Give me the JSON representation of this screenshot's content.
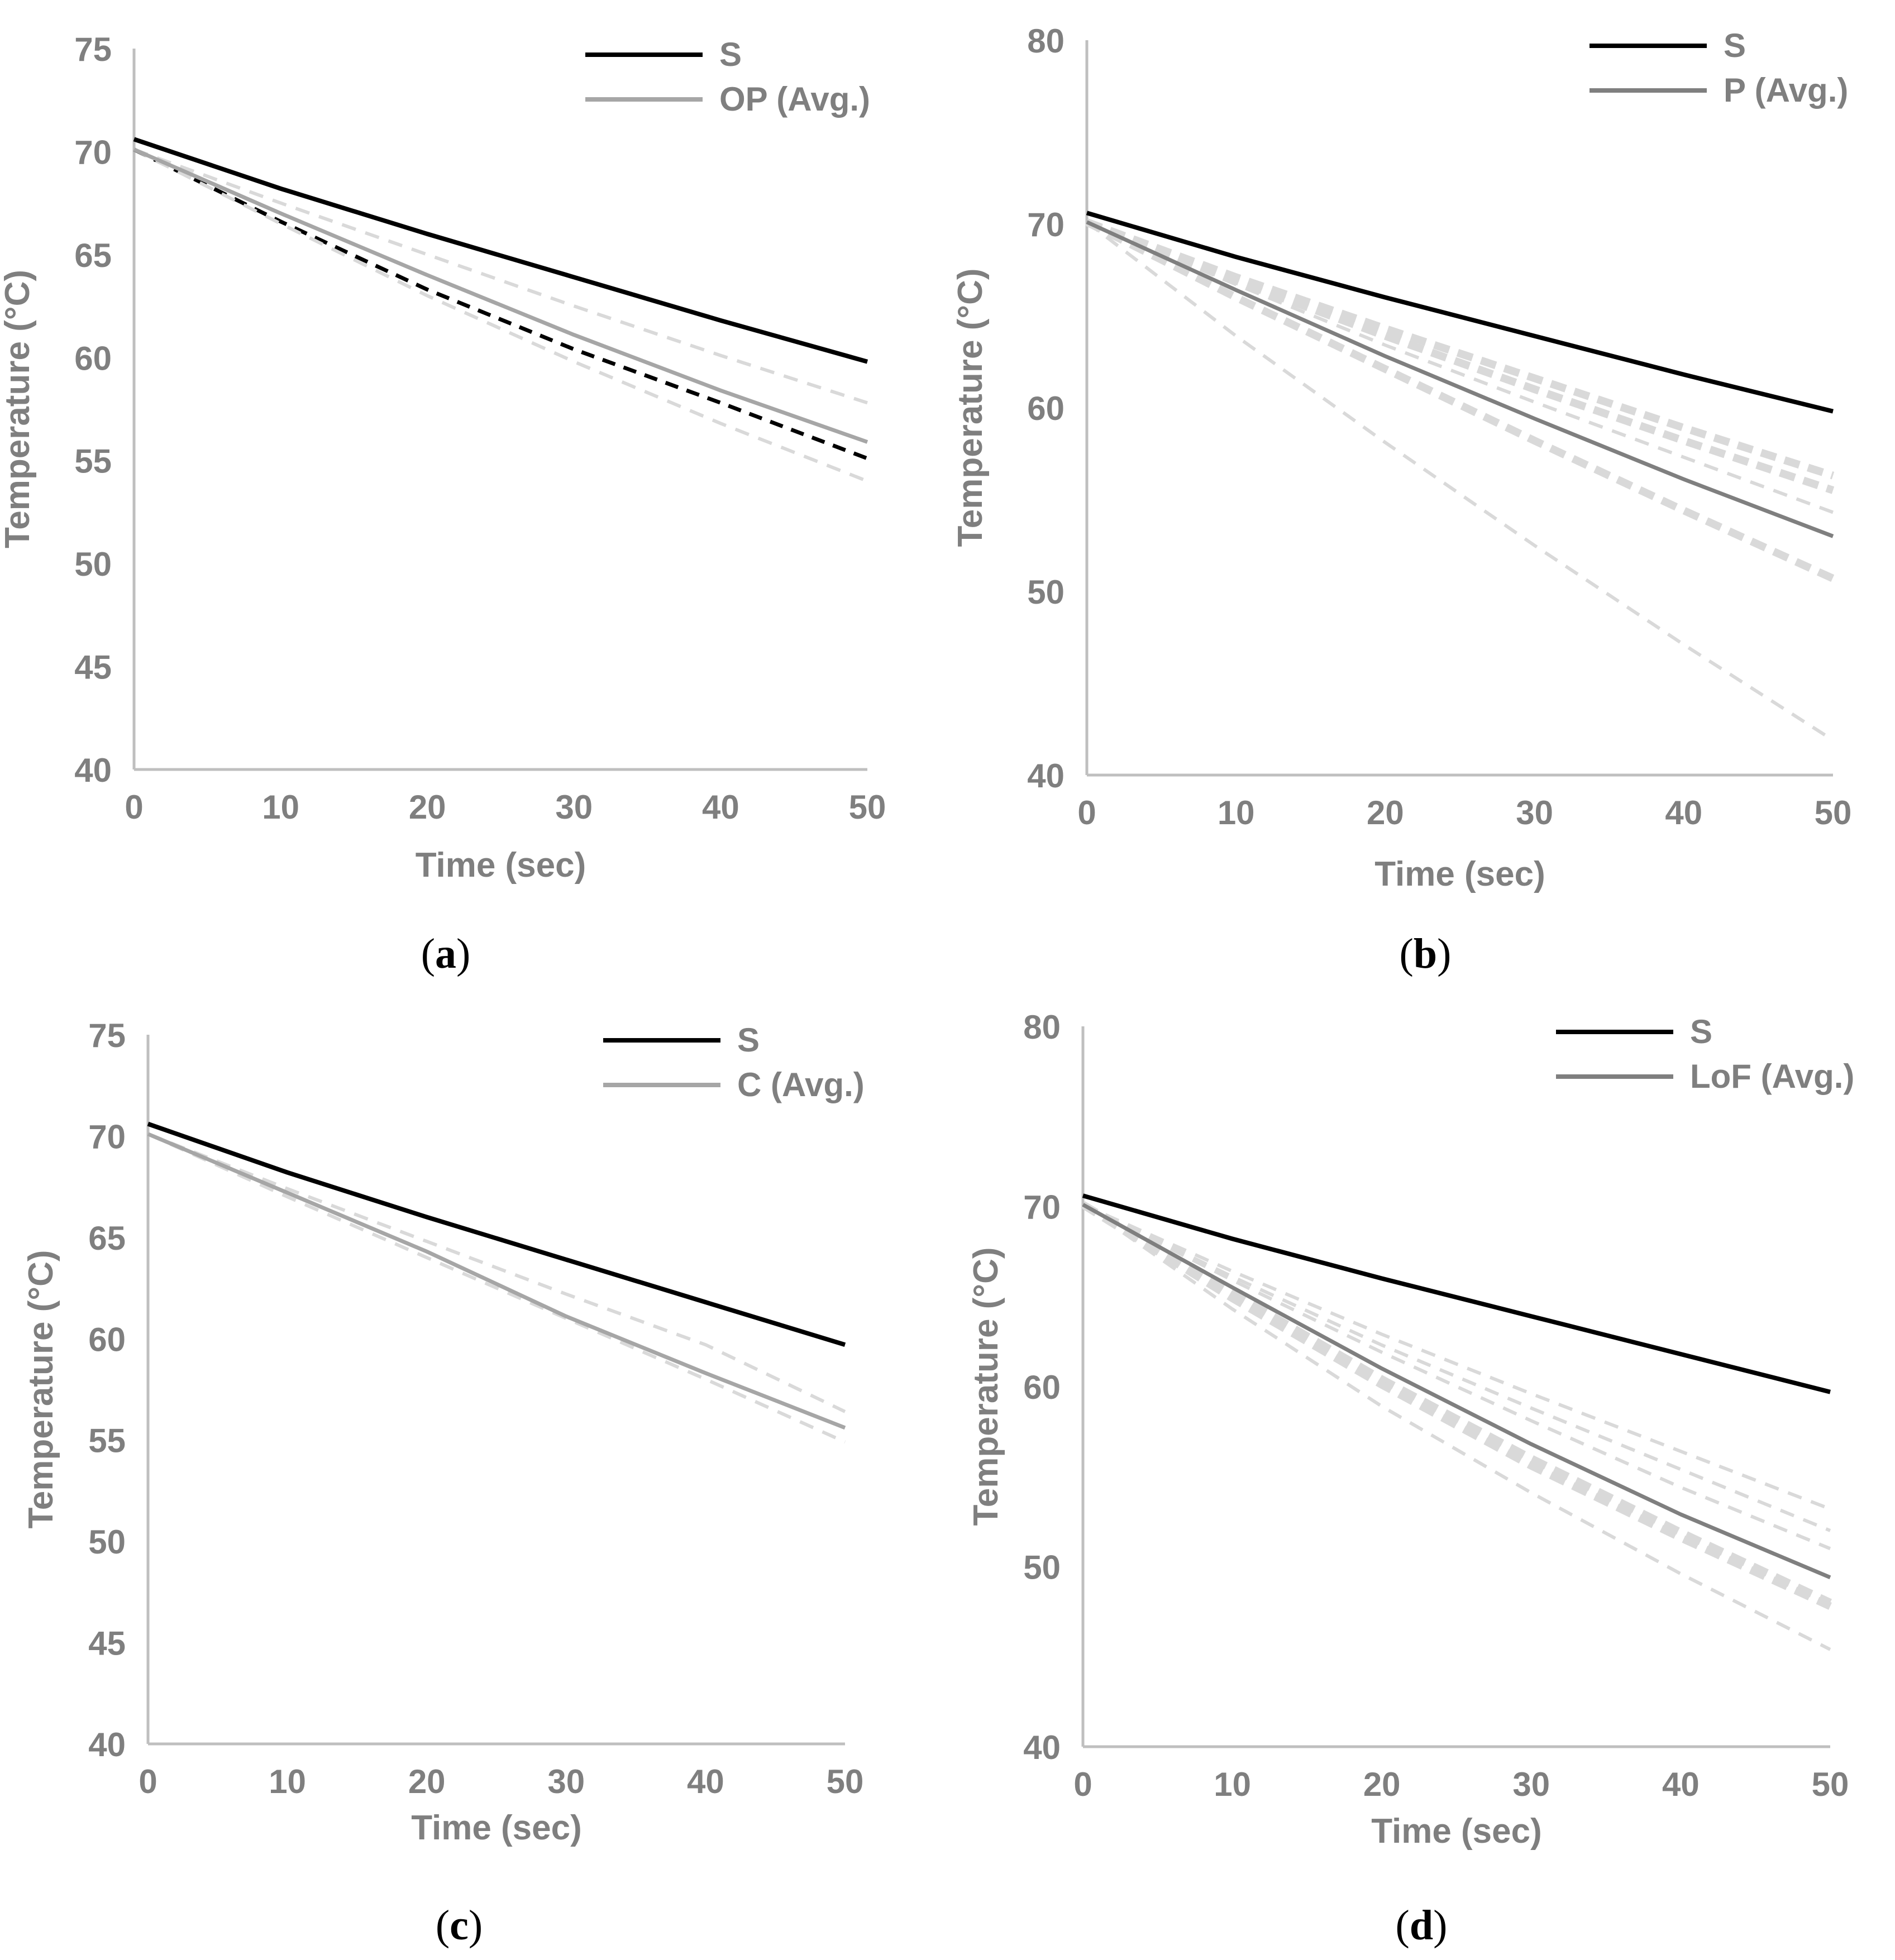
{
  "chart_data": [
    {
      "id": "a",
      "type": "line",
      "caption_letter": "a",
      "xlabel": "Time (sec)",
      "ylabel": "Temperature (°C)",
      "xlim": [
        0,
        50
      ],
      "ylim": [
        40,
        75
      ],
      "xticks": [
        "0",
        "10",
        "20",
        "30",
        "40",
        "50"
      ],
      "yticks": [
        "40",
        "45",
        "50",
        "55",
        "60",
        "65",
        "70",
        "75"
      ],
      "legend_position": "top-right",
      "legend": [
        {
          "label": "S",
          "color": "#000000"
        },
        {
          "label": "OP (Avg.)",
          "color": "#a6a6a6"
        }
      ],
      "series": [
        {
          "name": "S",
          "style": "solid",
          "color": "#000000",
          "x": [
            0,
            10,
            20,
            30,
            40,
            50
          ],
          "y": [
            70.6,
            68.2,
            66.0,
            63.9,
            61.8,
            59.8
          ]
        },
        {
          "name": "OP (Avg.)",
          "style": "solid",
          "color": "#a6a6a6",
          "x": [
            0,
            10,
            20,
            30,
            40,
            50
          ],
          "y": [
            70.1,
            67.0,
            64.0,
            61.1,
            58.4,
            55.9
          ]
        },
        {
          "style": "dashed",
          "color": "#000000",
          "x": [
            0,
            10,
            20,
            30,
            40,
            50
          ],
          "y": [
            70.1,
            66.6,
            63.3,
            60.4,
            57.8,
            55.1
          ]
        },
        {
          "style": "dashed",
          "color": "#d9d9d9",
          "x": [
            0,
            10,
            20,
            30,
            40,
            50
          ],
          "y": [
            70.1,
            67.5,
            65.0,
            62.5,
            60.1,
            57.8
          ]
        },
        {
          "style": "dashed",
          "color": "#d9d9d9",
          "x": [
            0,
            10,
            20,
            30,
            40,
            50
          ],
          "y": [
            70.1,
            66.5,
            63.0,
            59.8,
            56.8,
            54.0
          ]
        }
      ]
    },
    {
      "id": "b",
      "type": "line",
      "caption_letter": "b",
      "xlabel": "Time (sec)",
      "ylabel": "Temperature (°C)",
      "xlim": [
        0,
        50
      ],
      "ylim": [
        40,
        80
      ],
      "xticks": [
        "0",
        "10",
        "20",
        "30",
        "40",
        "50"
      ],
      "yticks": [
        "40",
        "50",
        "60",
        "70",
        "80"
      ],
      "legend_position": "top-right",
      "legend": [
        {
          "label": "S",
          "color": "#000000"
        },
        {
          "label": "P (Avg.)",
          "color": "#7f7f7f"
        }
      ],
      "series": [
        {
          "name": "S",
          "style": "solid",
          "color": "#000000",
          "x": [
            0,
            10,
            20,
            30,
            40,
            50
          ],
          "y": [
            70.6,
            68.2,
            66.0,
            63.9,
            61.8,
            59.8
          ]
        },
        {
          "name": "P (Avg.)",
          "style": "solid",
          "color": "#7f7f7f",
          "x": [
            0,
            10,
            20,
            30,
            40,
            50
          ],
          "y": [
            70.1,
            66.4,
            62.8,
            59.4,
            56.1,
            53.0
          ]
        },
        {
          "style": "dashed-thick",
          "color": "#d9d9d9",
          "x": [
            0,
            10,
            20,
            30,
            40,
            50
          ],
          "y": [
            70.1,
            67.1,
            64.3,
            61.6,
            58.9,
            56.3
          ]
        },
        {
          "style": "dashed-thick",
          "color": "#d9d9d9",
          "x": [
            0,
            10,
            20,
            30,
            40,
            50
          ],
          "y": [
            70.1,
            66.9,
            63.9,
            61.0,
            58.2,
            55.5
          ]
        },
        {
          "style": "dashed",
          "color": "#d9d9d9",
          "x": [
            0,
            10,
            20,
            30,
            40,
            50
          ],
          "y": [
            70.1,
            66.7,
            63.4,
            60.3,
            57.3,
            54.3
          ]
        },
        {
          "style": "dashed-thick",
          "color": "#d9d9d9",
          "x": [
            0,
            10,
            20,
            30,
            40,
            50
          ],
          "y": [
            70.1,
            66.0,
            62.1,
            58.2,
            54.4,
            50.7
          ]
        },
        {
          "style": "dashed",
          "color": "#d9d9d9",
          "x": [
            0,
            10,
            20,
            30,
            40,
            50
          ],
          "y": [
            70.1,
            63.9,
            58.1,
            52.5,
            47.1,
            41.9
          ]
        }
      ]
    },
    {
      "id": "c",
      "type": "line",
      "caption_letter": "c",
      "xlabel": "Time (sec)",
      "ylabel": "Temperature (°C)",
      "xlim": [
        0,
        50
      ],
      "ylim": [
        40,
        75
      ],
      "xticks": [
        "0",
        "10",
        "20",
        "30",
        "40",
        "50"
      ],
      "yticks": [
        "40",
        "45",
        "50",
        "55",
        "60",
        "65",
        "70",
        "75"
      ],
      "legend_position": "top-right",
      "legend": [
        {
          "label": "S",
          "color": "#000000"
        },
        {
          "label": "C (Avg.)",
          "color": "#a6a6a6"
        }
      ],
      "series": [
        {
          "name": "S",
          "style": "solid",
          "color": "#000000",
          "x": [
            0,
            10,
            20,
            30,
            40,
            50
          ],
          "y": [
            70.6,
            68.2,
            66.0,
            63.9,
            61.8,
            59.7
          ]
        },
        {
          "name": "C (Avg.)",
          "style": "solid",
          "color": "#a6a6a6",
          "x": [
            0,
            10,
            20,
            30,
            40,
            50
          ],
          "y": [
            70.1,
            67.2,
            64.3,
            61.1,
            58.3,
            55.6
          ]
        },
        {
          "style": "dashed",
          "color": "#d9d9d9",
          "x": [
            0,
            10,
            20,
            30,
            40,
            50
          ],
          "y": [
            70.1,
            67.4,
            64.8,
            62.2,
            59.7,
            56.4
          ]
        },
        {
          "style": "dashed",
          "color": "#d9d9d9",
          "x": [
            0,
            10,
            20,
            30,
            40,
            50
          ],
          "y": [
            70.1,
            67.0,
            64.0,
            61.0,
            58.0,
            54.9
          ]
        }
      ]
    },
    {
      "id": "d",
      "type": "line",
      "caption_letter": "d",
      "xlabel": "Time (sec)",
      "ylabel": "Temperature (°C)",
      "xlim": [
        0,
        50
      ],
      "ylim": [
        40,
        80
      ],
      "xticks": [
        "0",
        "10",
        "20",
        "30",
        "40",
        "50"
      ],
      "yticks": [
        "40",
        "50",
        "60",
        "70",
        "80"
      ],
      "legend_position": "top-right",
      "legend": [
        {
          "label": "S",
          "color": "#000000"
        },
        {
          "label": "LoF (Avg.)",
          "color": "#7f7f7f"
        }
      ],
      "series": [
        {
          "name": "S",
          "style": "solid",
          "color": "#000000",
          "x": [
            0,
            10,
            20,
            30,
            40,
            50
          ],
          "y": [
            70.6,
            68.2,
            66.0,
            63.9,
            61.8,
            59.7
          ]
        },
        {
          "name": "LoF (Avg.)",
          "style": "solid",
          "color": "#7f7f7f",
          "x": [
            0,
            10,
            20,
            30,
            40,
            50
          ],
          "y": [
            70.1,
            65.5,
            61.0,
            56.8,
            52.9,
            49.4
          ]
        },
        {
          "style": "dashed",
          "color": "#d9d9d9",
          "x": [
            0,
            10,
            20,
            30,
            40,
            50
          ],
          "y": [
            70.1,
            66.4,
            62.9,
            59.6,
            56.4,
            53.2
          ]
        },
        {
          "style": "dashed",
          "color": "#d9d9d9",
          "x": [
            0,
            10,
            20,
            30,
            40,
            50
          ],
          "y": [
            70.1,
            66.1,
            62.3,
            58.8,
            55.4,
            52.0
          ]
        },
        {
          "style": "dashed",
          "color": "#d9d9d9",
          "x": [
            0,
            10,
            20,
            30,
            40,
            50
          ],
          "y": [
            70.1,
            65.9,
            61.9,
            58.1,
            54.4,
            51.0
          ]
        },
        {
          "style": "dashed-thick",
          "color": "#d9d9d9",
          "x": [
            0,
            10,
            20,
            30,
            40,
            50
          ],
          "y": [
            70.1,
            65.2,
            60.4,
            56.0,
            51.9,
            48.0
          ]
        },
        {
          "style": "dashed-thick",
          "color": "#d9d9d9",
          "x": [
            0,
            10,
            20,
            30,
            40,
            50
          ],
          "y": [
            70.1,
            64.9,
            60.1,
            55.6,
            51.6,
            47.8
          ]
        },
        {
          "style": "dashed",
          "color": "#d9d9d9",
          "x": [
            0,
            10,
            20,
            30,
            40,
            50
          ],
          "y": [
            70.1,
            64.3,
            58.9,
            54.1,
            49.6,
            45.4
          ]
        }
      ]
    }
  ]
}
